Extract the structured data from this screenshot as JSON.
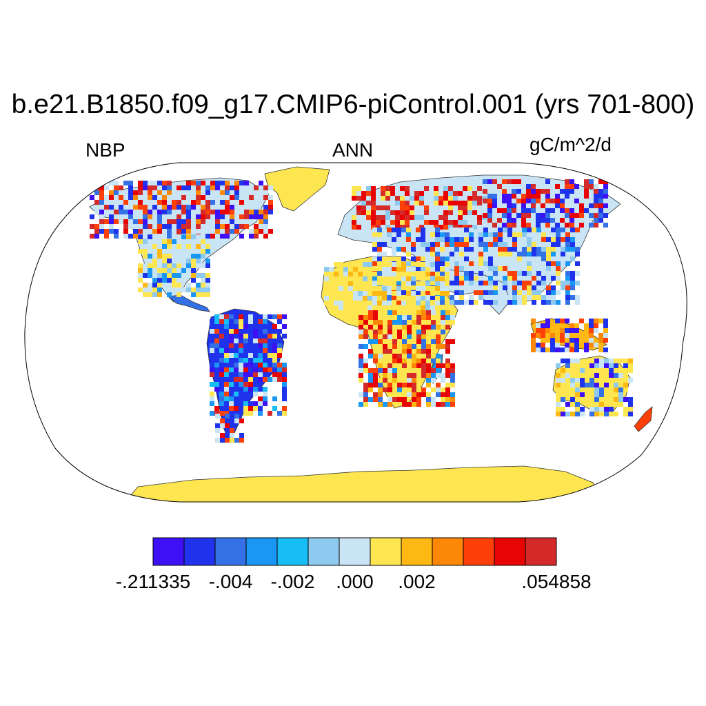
{
  "figure": {
    "title": "b.e21.B1850.f09_g17.CMIP6-piControl.001 (yrs 701-800)",
    "left_label": "NBP",
    "center_label": "ANN",
    "right_label": "gC/m^2/d"
  },
  "map": {
    "projection": "Robinson",
    "variable": "NBP",
    "season": "ANN",
    "units": "gC/m^2/d",
    "background_color": "#ffffff",
    "regions": [
      {
        "name": "north-america",
        "pattern": "mixed red/blue boreal, light-blue and yellow interior"
      },
      {
        "name": "greenland",
        "pattern": "yellow"
      },
      {
        "name": "south-america",
        "pattern": "blue amazon with red east"
      },
      {
        "name": "europe-siberia",
        "pattern": "red west siberia, blue east siberia"
      },
      {
        "name": "africa",
        "pattern": "yellow sahara, red/yellow south"
      },
      {
        "name": "australia",
        "pattern": "yellow interior, blue east coast"
      },
      {
        "name": "antarctica",
        "pattern": "yellow"
      }
    ]
  },
  "colorbar": {
    "colors": [
      "#3d10f5",
      "#1f32ec",
      "#3471e6",
      "#1a96f5",
      "#17bef5",
      "#8ec9ef",
      "#c8e4f5",
      "#fde64f",
      "#fdb814",
      "#fd8808",
      "#fd4008",
      "#e80404",
      "#d42a2a"
    ],
    "labels": [
      {
        "text": "-.211335",
        "boundary": 0
      },
      {
        "text": "-.004",
        "boundary": 2.5
      },
      {
        "text": "-.002",
        "boundary": 4.5
      },
      {
        "text": ".000",
        "boundary": 6.5
      },
      {
        "text": ".002",
        "boundary": 8.5
      },
      {
        "text": ".054858",
        "boundary": 13
      }
    ]
  }
}
